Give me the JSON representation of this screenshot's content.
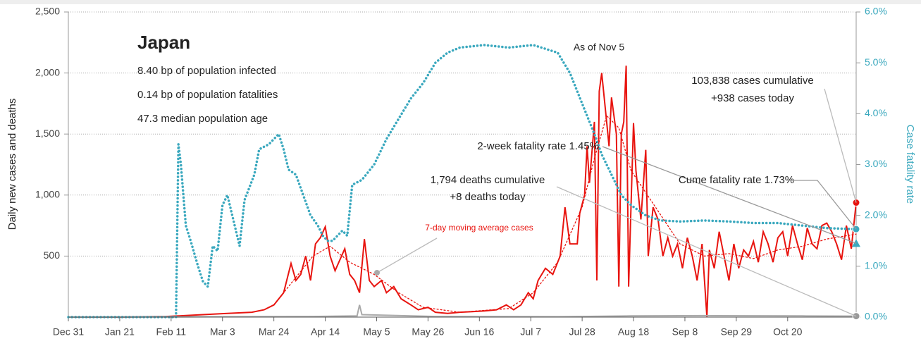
{
  "chart_data": {
    "type": "line",
    "info": {
      "title": "Japan",
      "lines": [
        "8.40 bp of population infected",
        "0.14 bp of population fatalities",
        "47.3 median population age"
      ]
    },
    "ylabel": "Daily new cases and deaths",
    "y2label": "Case fatality rate",
    "xlim": [
      0,
      322
    ],
    "xticks": [
      {
        "value": 0,
        "label": "Dec 31"
      },
      {
        "value": 21,
        "label": "Jan 21"
      },
      {
        "value": 42,
        "label": "Feb 11"
      },
      {
        "value": 63,
        "label": "Mar 3"
      },
      {
        "value": 84,
        "label": "Mar 24"
      },
      {
        "value": 105,
        "label": "Apr 14"
      },
      {
        "value": 126,
        "label": "May 5"
      },
      {
        "value": 147,
        "label": "May 26"
      },
      {
        "value": 168,
        "label": "Jun 16"
      },
      {
        "value": 189,
        "label": "Jul 7"
      },
      {
        "value": 210,
        "label": "Jul 28"
      },
      {
        "value": 231,
        "label": "Aug 18"
      },
      {
        "value": 252,
        "label": "Sep 8"
      },
      {
        "value": 273,
        "label": "Sep 29"
      },
      {
        "value": 294,
        "label": "Oct 20"
      }
    ],
    "ylim": [
      0,
      2500
    ],
    "yticks": [
      500,
      {
        "value": 1000,
        "label": "1,000"
      },
      {
        "value": 1500,
        "label": "1,500"
      },
      {
        "value": 2000,
        "label": "2,000"
      },
      {
        "value": 2500,
        "label": "2,500"
      }
    ],
    "y2lim": [
      0,
      6
    ],
    "y2ticks": [
      {
        "value": 0,
        "label": "0.0%"
      },
      {
        "value": 1,
        "label": "1.0%"
      },
      {
        "value": 2,
        "label": "2.0%"
      },
      {
        "value": 3,
        "label": "3.0%"
      },
      {
        "value": 4,
        "label": "4.0%"
      },
      {
        "value": 5,
        "label": "5.0%"
      },
      {
        "value": 6,
        "label": "6.0%"
      }
    ],
    "grid": true,
    "series": [
      {
        "color": "#e8140f",
        "style": "solid",
        "axis": "y",
        "x": [
          0,
          20,
          40,
          45,
          55,
          65,
          75,
          80,
          84,
          88,
          91,
          93,
          95,
          97,
          99,
          101,
          103,
          105,
          107,
          109,
          111,
          113,
          115,
          117,
          119,
          121,
          123,
          125,
          128,
          130,
          133,
          136,
          140,
          143,
          147,
          150,
          155,
          160,
          165,
          170,
          175,
          179,
          182,
          185,
          188,
          190,
          192,
          195,
          198,
          201,
          203,
          205,
          208,
          209,
          211,
          212,
          213,
          215,
          216,
          217,
          218,
          220,
          221,
          222,
          224,
          225,
          226,
          227,
          228,
          229,
          231,
          232,
          234,
          236,
          237,
          239,
          241,
          243,
          245,
          247,
          249,
          251,
          253,
          255,
          257,
          259,
          261,
          262,
          264,
          266,
          268,
          270,
          272,
          274,
          276,
          278,
          280,
          282,
          284,
          286,
          288,
          290,
          292,
          294,
          296,
          298,
          300,
          302,
          304,
          306,
          308,
          310,
          312,
          314,
          316,
          318,
          320,
          322
        ],
        "values": [
          0,
          0,
          5,
          10,
          20,
          30,
          40,
          60,
          100,
          200,
          440,
          300,
          350,
          500,
          300,
          600,
          650,
          740,
          500,
          380,
          470,
          560,
          350,
          300,
          200,
          640,
          300,
          250,
          300,
          200,
          250,
          150,
          100,
          60,
          80,
          40,
          30,
          40,
          45,
          50,
          60,
          100,
          60,
          100,
          200,
          150,
          300,
          400,
          350,
          500,
          900,
          600,
          600,
          850,
          1000,
          1400,
          1100,
          1600,
          300,
          1850,
          2000,
          1600,
          1400,
          1800,
          1500,
          250,
          1500,
          1600,
          2060,
          250,
          1590,
          1200,
          800,
          1370,
          500,
          900,
          800,
          500,
          650,
          500,
          600,
          400,
          650,
          500,
          300,
          600,
          0,
          550,
          400,
          700,
          500,
          300,
          600,
          400,
          550,
          500,
          620,
          450,
          700,
          600,
          450,
          650,
          700,
          500,
          750,
          600,
          470,
          730,
          600,
          560,
          750,
          770,
          700,
          600,
          470,
          750,
          560,
          938
        ]
      },
      {
        "name": "7-day moving average cases",
        "color": "#e8140f",
        "style": "dotted",
        "axis": "y",
        "x": [
          84,
          92,
          100,
          107,
          115,
          125,
          135,
          145,
          160,
          180,
          190,
          200,
          210,
          215,
          220,
          225,
          230,
          240,
          250,
          260,
          270,
          280,
          290,
          300,
          310,
          322
        ],
        "values": [
          100,
          300,
          500,
          580,
          450,
          350,
          200,
          80,
          40,
          70,
          200,
          450,
          900,
          1300,
          1650,
          1550,
          1200,
          900,
          600,
          500,
          520,
          480,
          550,
          580,
          640,
          680
        ]
      },
      {
        "color": "#aaaaaa",
        "style": "solid",
        "axis": "y",
        "x": [
          0,
          100,
          118,
          119,
          120,
          130,
          150,
          200,
          230,
          260,
          300,
          322
        ],
        "values": [
          0,
          5,
          10,
          100,
          20,
          15,
          5,
          3,
          10,
          12,
          10,
          8
        ]
      },
      {
        "color": "#3aa8be",
        "style": "dotted",
        "axis": "y2",
        "x": [
          0,
          44,
          45,
          46,
          48,
          50,
          53,
          55,
          57,
          59,
          61,
          63,
          65,
          67,
          70,
          72,
          76,
          78,
          82,
          86,
          88,
          90,
          93,
          96,
          99,
          102,
          104,
          106,
          108,
          110,
          112,
          114,
          116,
          120,
          125,
          130,
          135,
          140,
          145,
          150,
          155,
          160,
          170,
          180,
          190,
          200,
          205,
          210,
          215,
          218,
          222,
          226,
          230,
          236,
          242,
          250,
          260,
          270,
          280,
          290,
          300,
          310,
          322
        ],
        "values": [
          0,
          0,
          3.4,
          3.0,
          1.8,
          1.5,
          1.0,
          0.7,
          0.6,
          1.4,
          1.3,
          2.2,
          2.4,
          2.0,
          1.4,
          2.3,
          2.8,
          3.3,
          3.4,
          3.6,
          3.3,
          2.9,
          2.8,
          2.4,
          2.0,
          1.8,
          1.6,
          1.5,
          1.5,
          1.6,
          1.7,
          1.6,
          2.6,
          2.7,
          3.0,
          3.5,
          3.9,
          4.3,
          4.6,
          5.0,
          5.2,
          5.3,
          5.35,
          5.3,
          5.35,
          5.2,
          4.8,
          4.2,
          3.6,
          3.2,
          2.8,
          2.4,
          2.2,
          2.0,
          1.9,
          1.88,
          1.9,
          1.88,
          1.85,
          1.85,
          1.8,
          1.75,
          1.73
        ]
      }
    ],
    "markers": [
      {
        "value": 1.45,
        "axis": "y2",
        "color": "#3aa8be"
      }
    ],
    "annotations": [
      "As of Nov 5",
      "103,838 cases cumulative",
      "+938 cases today",
      "2-week fatality rate 1.45%",
      "Cume fatality rate 1.73%",
      "1,794 deaths cumulative",
      "+8 deaths today"
    ]
  }
}
